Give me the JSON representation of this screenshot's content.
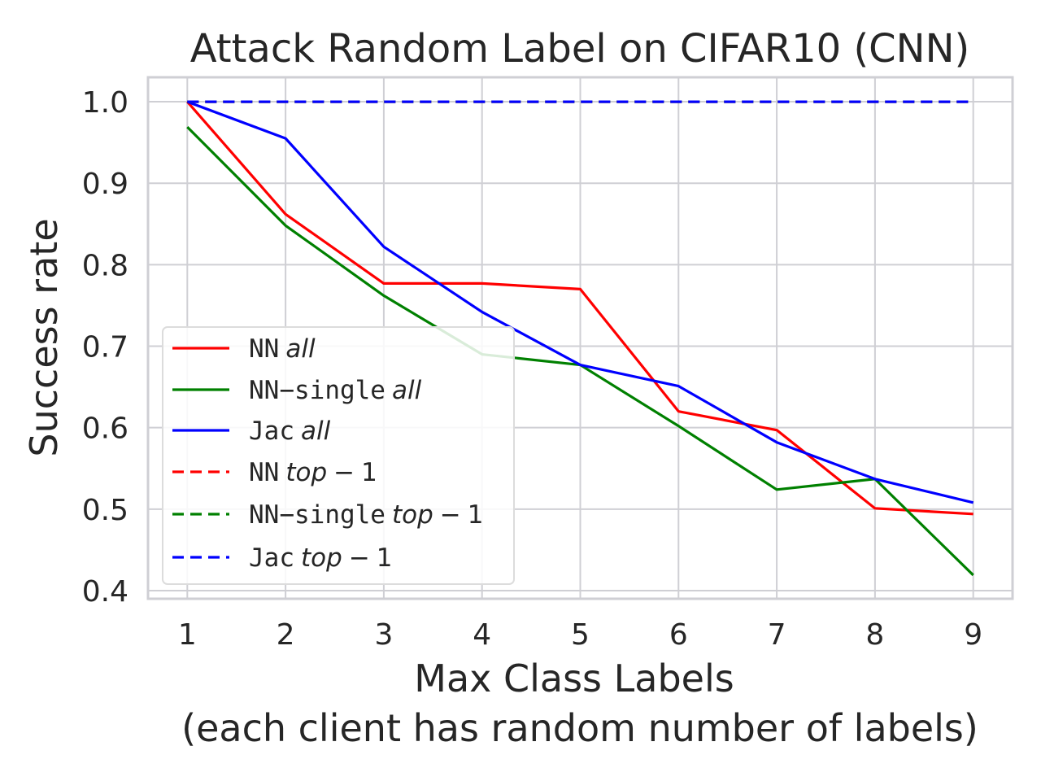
{
  "chart_data": {
    "type": "line",
    "title": "Attack Random Label on CIFAR10 (CNN)",
    "xlabel": "Max Class Labels",
    "xlabel2": "(each client has random number of labels)",
    "ylabel": "Success rate",
    "x": [
      1,
      2,
      3,
      4,
      5,
      6,
      7,
      8,
      9
    ],
    "xlim": [
      0.6,
      9.4
    ],
    "ylim": [
      0.39,
      1.03
    ],
    "yticks": [
      "1.0",
      "0.9",
      "0.8",
      "0.7",
      "0.6",
      "0.5",
      "0.4"
    ],
    "ytick_values": [
      1.0,
      0.9,
      0.8,
      0.7,
      0.6,
      0.5,
      0.4
    ],
    "xticks": [
      "1",
      "2",
      "3",
      "4",
      "5",
      "6",
      "7",
      "8",
      "9"
    ],
    "grid": true,
    "legend_placement": "lower-left",
    "series": [
      {
        "name": "NN",
        "name_suffix": "all",
        "color": "#ff0000",
        "style": "solid",
        "values": [
          1.0,
          0.862,
          0.777,
          0.777,
          0.77,
          0.62,
          0.597,
          0.501,
          0.494
        ]
      },
      {
        "name": "NN−single",
        "name_suffix": "all",
        "color": "#008000",
        "style": "solid",
        "values": [
          0.969,
          0.848,
          0.762,
          0.69,
          0.677,
          0.602,
          0.524,
          0.537,
          0.419
        ]
      },
      {
        "name": "Jac",
        "name_suffix": "all",
        "color": "#0000ff",
        "style": "solid",
        "values": [
          1.0,
          0.955,
          0.822,
          0.742,
          0.677,
          0.651,
          0.582,
          0.537,
          0.508
        ]
      },
      {
        "name": "NN",
        "name_suffix": "top − 1",
        "color": "#ff0000",
        "style": "dashed",
        "values": [
          1.0,
          1.0,
          1.0,
          1.0,
          1.0,
          1.0,
          1.0,
          1.0,
          1.0
        ]
      },
      {
        "name": "NN−single",
        "name_suffix": "top − 1",
        "color": "#008000",
        "style": "dashed",
        "values": [
          1.0,
          1.0,
          1.0,
          1.0,
          1.0,
          1.0,
          1.0,
          1.0,
          1.0
        ]
      },
      {
        "name": "Jac",
        "name_suffix": "top − 1",
        "color": "#0000ff",
        "style": "dashed",
        "values": [
          1.0,
          1.0,
          1.0,
          1.0,
          1.0,
          1.0,
          1.0,
          1.0,
          1.0
        ]
      }
    ]
  }
}
